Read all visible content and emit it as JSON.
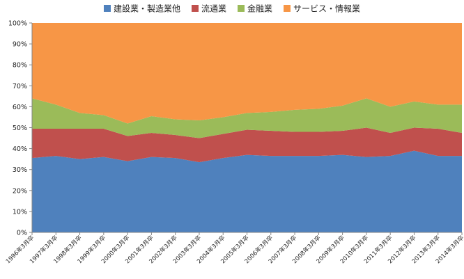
{
  "chart_data": {
    "type": "area",
    "stacked": "percent",
    "categories": [
      "1996年3月卒",
      "1997年3月卒",
      "1998年3月卒",
      "1999年3月卒",
      "2000年3月卒",
      "2001年3月卒",
      "2002年3月卒",
      "2003年3月卒",
      "2004年3月卒",
      "2005年3月卒",
      "2006年3月卒",
      "2007年3月卒",
      "2008年3月卒",
      "2009年3月卒",
      "2010年3月卒",
      "2011年3月卒",
      "2012年3月卒",
      "2013年3月卒",
      "2014年3月卒"
    ],
    "series": [
      {
        "name": "建設業・製造業他",
        "color": "#4f81bd",
        "values": [
          35.5,
          36.5,
          35,
          36,
          34,
          36,
          35.5,
          33.5,
          35.5,
          37,
          36.5,
          36.5,
          36.5,
          37,
          36,
          36.5,
          39,
          36.5,
          36.5
        ]
      },
      {
        "name": "流通業",
        "color": "#c0504d",
        "values": [
          14,
          13,
          14.5,
          13.5,
          12,
          11.5,
          11,
          11.5,
          11.5,
          12,
          12,
          11.5,
          11.5,
          11.5,
          14,
          11,
          11,
          13,
          11
        ]
      },
      {
        "name": "金融業",
        "color": "#9bbb59",
        "values": [
          14.5,
          11.5,
          7.5,
          6.5,
          6,
          8,
          7.5,
          8.5,
          8,
          8,
          9,
          10.5,
          11,
          12,
          14,
          12.5,
          12.5,
          11.5,
          13.5
        ]
      },
      {
        "name": "サービス・情報業",
        "color": "#f79646",
        "values": [
          36,
          39,
          43,
          44,
          48,
          44.5,
          46,
          46.5,
          45,
          43,
          42.5,
          41.5,
          41,
          39.5,
          36,
          40,
          37.5,
          39,
          39
        ]
      }
    ],
    "ylim": [
      0,
      100
    ],
    "y_ticks": [
      "0%",
      "10%",
      "20%",
      "30%",
      "40%",
      "50%",
      "60%",
      "70%",
      "80%",
      "90%",
      "100%"
    ],
    "legend_position": "top",
    "grid": false
  }
}
